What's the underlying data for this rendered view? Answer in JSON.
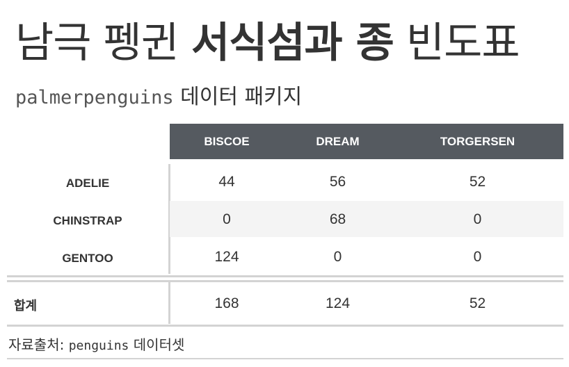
{
  "title": {
    "part1": "남극 펭귄 ",
    "part2_bold": "서식섬과 종",
    "part3": " 빈도표"
  },
  "subtitle": {
    "code": "palmerpenguins",
    "text": " 데이터 패키지"
  },
  "table": {
    "columns": [
      "BISCOE",
      "DREAM",
      "TORGERSEN"
    ],
    "rows": [
      {
        "label": "ADELIE",
        "values": [
          "44",
          "56",
          "52"
        ]
      },
      {
        "label": "CHINSTRAP",
        "values": [
          "0",
          "68",
          "0"
        ]
      },
      {
        "label": "GENTOO",
        "values": [
          "124",
          "0",
          "0"
        ]
      }
    ],
    "summary": {
      "label": "합계",
      "values": [
        "168",
        "124",
        "52"
      ]
    }
  },
  "source": {
    "prefix": "자료출처: ",
    "code": "penguins",
    "suffix": " 데이터셋"
  },
  "colors": {
    "header_bg": "#555a60",
    "header_text": "#ffffff",
    "stripe": "#f4f4f4",
    "rule": "#d3d3d3"
  }
}
